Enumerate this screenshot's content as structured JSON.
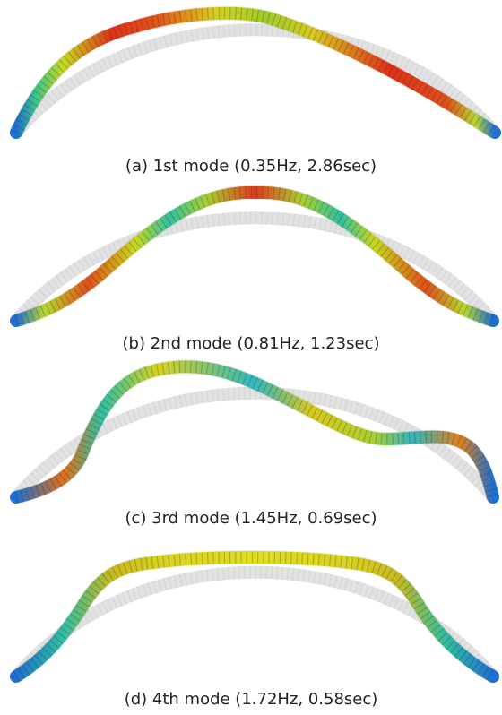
{
  "captions": [
    "(a) 1st mode (0.35Hz, 2.86sec)",
    "(b) 2nd mode (0.81Hz, 1.23sec)",
    "(c) 3rd mode (1.45Hz, 0.69sec)",
    "(d) 4th mode (1.72Hz, 0.58sec)"
  ]
}
